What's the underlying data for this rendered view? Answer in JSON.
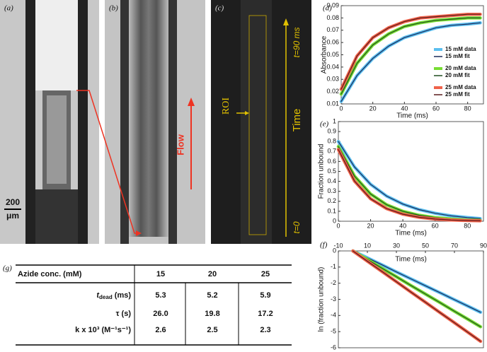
{
  "panels": {
    "a": {
      "label": "(a)",
      "scale_value": "200",
      "scale_unit": "μm"
    },
    "b": {
      "label": "(b)",
      "flow": "Flow"
    },
    "c": {
      "label": "(c)",
      "roi": "ROI",
      "time": "Time",
      "t_end": "t=90 ms",
      "t_start": "t=0"
    }
  },
  "chart_data": [
    {
      "type": "line",
      "label": "(d)",
      "x_label": "Time (ms)",
      "y_label": "Absorbance",
      "xlim": [
        0,
        90
      ],
      "xticks": [
        0,
        20,
        40,
        60,
        80
      ],
      "ylim": [
        0.01,
        0.09
      ],
      "yticks": [
        0.01,
        0.02,
        0.03,
        0.04,
        0.05,
        0.06,
        0.07,
        0.08,
        0.09
      ],
      "legend": "right",
      "x": [
        0,
        10,
        20,
        30,
        40,
        50,
        60,
        70,
        80,
        88
      ],
      "series": [
        {
          "name": "15 mM data",
          "color": "#5bbfef",
          "values": [
            0.012,
            0.033,
            0.047,
            0.057,
            0.064,
            0.068,
            0.072,
            0.074,
            0.075,
            0.076
          ]
        },
        {
          "name": "15 mM fit",
          "color": "#1a2a5a",
          "values": [
            0.012,
            0.033,
            0.047,
            0.057,
            0.064,
            0.068,
            0.072,
            0.074,
            0.075,
            0.076
          ]
        },
        {
          "name": "20 mM data",
          "color": "#77dd33",
          "values": [
            0.018,
            0.043,
            0.058,
            0.067,
            0.073,
            0.076,
            0.078,
            0.079,
            0.08,
            0.08
          ]
        },
        {
          "name": "20 mM fit",
          "color": "#1f4d1f",
          "values": [
            0.018,
            0.043,
            0.058,
            0.067,
            0.073,
            0.076,
            0.078,
            0.079,
            0.08,
            0.08
          ]
        },
        {
          "name": "25 mM data",
          "color": "#f0624a",
          "values": [
            0.022,
            0.049,
            0.064,
            0.072,
            0.077,
            0.08,
            0.081,
            0.082,
            0.083,
            0.083
          ]
        },
        {
          "name": "25 mM fit",
          "color": "#5a1a1a",
          "values": [
            0.022,
            0.049,
            0.064,
            0.072,
            0.077,
            0.08,
            0.081,
            0.082,
            0.083,
            0.083
          ]
        }
      ]
    },
    {
      "type": "line",
      "label": "(e)",
      "x_label": "Time (ms)",
      "y_label": "Fraction unbound",
      "xlim": [
        0,
        90
      ],
      "xticks": [
        0,
        20,
        40,
        60,
        80
      ],
      "ylim": [
        0,
        1
      ],
      "yticks": [
        0,
        0.1,
        0.2,
        0.3,
        0.4,
        0.5,
        0.6,
        0.7,
        0.8,
        0.9,
        1
      ],
      "x": [
        0,
        10,
        20,
        30,
        40,
        50,
        60,
        70,
        80,
        88
      ],
      "series": [
        {
          "color": "#5bbfef",
          "values": [
            0.8,
            0.545,
            0.37,
            0.252,
            0.172,
            0.117,
            0.08,
            0.054,
            0.037,
            0.027
          ]
        },
        {
          "color": "#1a2a5a",
          "values": [
            0.8,
            0.545,
            0.37,
            0.252,
            0.172,
            0.117,
            0.08,
            0.054,
            0.037,
            0.027
          ]
        },
        {
          "color": "#77dd33",
          "values": [
            0.75,
            0.453,
            0.273,
            0.165,
            0.1,
            0.06,
            0.036,
            0.022,
            0.013,
            0.009
          ]
        },
        {
          "color": "#1f4d1f",
          "values": [
            0.75,
            0.453,
            0.273,
            0.165,
            0.1,
            0.06,
            0.036,
            0.022,
            0.013,
            0.009
          ]
        },
        {
          "color": "#f0624a",
          "values": [
            0.72,
            0.403,
            0.225,
            0.126,
            0.071,
            0.04,
            0.022,
            0.012,
            0.007,
            0.004
          ]
        },
        {
          "color": "#5a1a1a",
          "values": [
            0.72,
            0.403,
            0.225,
            0.126,
            0.071,
            0.04,
            0.022,
            0.012,
            0.007,
            0.004
          ]
        }
      ]
    },
    {
      "type": "line",
      "label": "(f)",
      "x_label": "Time (ms)",
      "y_label": "ln (fraction unbound)",
      "xaxis": "top",
      "xlim": [
        -10,
        90
      ],
      "xticks": [
        -10,
        10,
        30,
        50,
        70,
        90
      ],
      "ylim": [
        -6,
        0
      ],
      "yticks": [
        0,
        -1,
        -2,
        -3,
        -4,
        -5,
        -6
      ],
      "x": [
        0,
        10,
        20,
        30,
        40,
        50,
        60,
        70,
        80,
        88
      ],
      "series": [
        {
          "color": "#5bbfef",
          "values": [
            0,
            -0.43,
            -0.86,
            -1.3,
            -1.73,
            -2.16,
            -2.59,
            -3.02,
            -3.45,
            -3.8
          ]
        },
        {
          "color": "#1a2a5a",
          "values": [
            0,
            -0.43,
            -0.86,
            -1.3,
            -1.73,
            -2.16,
            -2.59,
            -3.02,
            -3.45,
            -3.8
          ]
        },
        {
          "color": "#77dd33",
          "values": [
            0,
            -0.53,
            -1.07,
            -1.6,
            -2.14,
            -2.67,
            -3.2,
            -3.74,
            -4.27,
            -4.7
          ]
        },
        {
          "color": "#1f4d1f",
          "values": [
            0,
            -0.53,
            -1.07,
            -1.6,
            -2.14,
            -2.67,
            -3.2,
            -3.74,
            -4.27,
            -4.7
          ]
        },
        {
          "color": "#f0624a",
          "values": [
            0,
            -0.64,
            -1.27,
            -1.91,
            -2.55,
            -3.18,
            -3.82,
            -4.45,
            -5.09,
            -5.6
          ]
        },
        {
          "color": "#5a1a1a",
          "values": [
            0,
            -0.64,
            -1.27,
            -1.91,
            -2.55,
            -3.18,
            -3.82,
            -4.45,
            -5.09,
            -5.6
          ]
        }
      ]
    }
  ],
  "table": {
    "label": "(g)",
    "header": [
      "Azide conc. (mM)",
      "15",
      "20",
      "25"
    ],
    "rows": [
      [
        [
          "t",
          "dead",
          " (ms)"
        ],
        "5.3",
        "5.2",
        "5.9"
      ],
      [
        [
          "τ (s)"
        ],
        "26.0",
        "19.8",
        "17.2"
      ],
      [
        [
          "k x 10³ (M⁻¹s⁻¹)"
        ],
        "2.6",
        "2.5",
        "2.3"
      ]
    ]
  }
}
